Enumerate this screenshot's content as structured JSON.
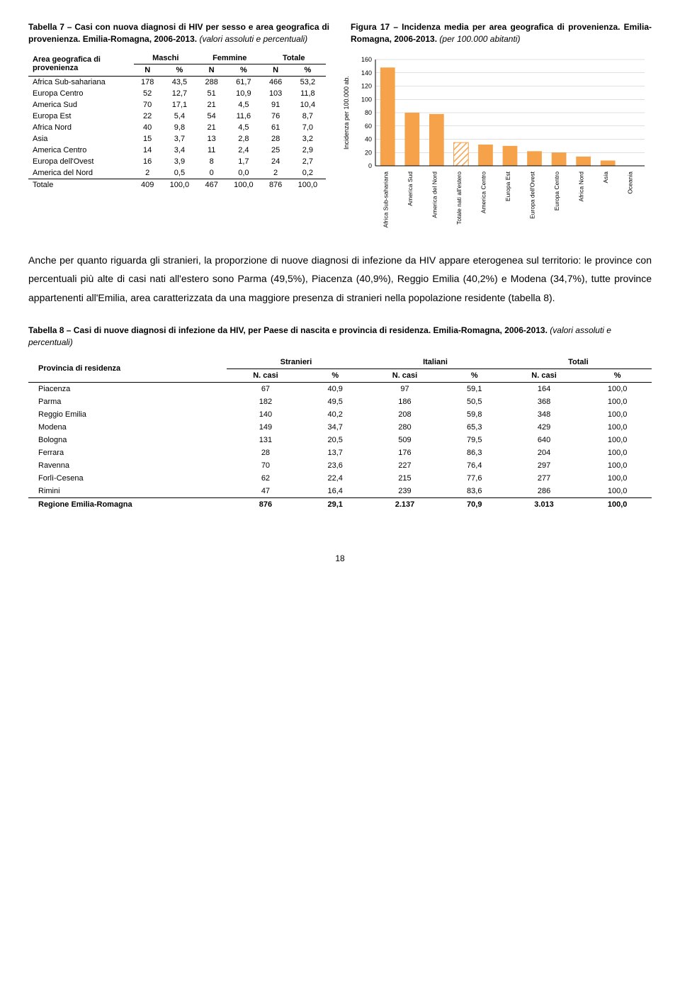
{
  "captions": {
    "t7_bold": "Tabella 7 – Casi con nuova diagnosi di HIV per sesso e area geografica di provenienza. Emilia-Romagna, 2006-2013.",
    "t7_italic": " (valori assoluti e percentuali)",
    "f17_bold": "Figura 17 – Incidenza media per area geografica di provenienza. Emilia-Romagna, 2006-2013.",
    "f17_italic": " (per 100.000 abitanti)"
  },
  "table7": {
    "corner_l1": "Area geografica di",
    "corner_l2": "provenienza",
    "group_headers": [
      "Maschi",
      "Femmine",
      "Totale"
    ],
    "sub_headers": [
      "N",
      "%",
      "N",
      "%",
      "N",
      "%"
    ],
    "rows": [
      {
        "label": "Africa Sub-sahariana",
        "v": [
          "178",
          "43,5",
          "288",
          "61,7",
          "466",
          "53,2"
        ]
      },
      {
        "label": "Europa Centro",
        "v": [
          "52",
          "12,7",
          "51",
          "10,9",
          "103",
          "11,8"
        ]
      },
      {
        "label": "America Sud",
        "v": [
          "70",
          "17,1",
          "21",
          "4,5",
          "91",
          "10,4"
        ]
      },
      {
        "label": "Europa Est",
        "v": [
          "22",
          "5,4",
          "54",
          "11,6",
          "76",
          "8,7"
        ]
      },
      {
        "label": "Africa Nord",
        "v": [
          "40",
          "9,8",
          "21",
          "4,5",
          "61",
          "7,0"
        ]
      },
      {
        "label": "Asia",
        "v": [
          "15",
          "3,7",
          "13",
          "2,8",
          "28",
          "3,2"
        ]
      },
      {
        "label": "America Centro",
        "v": [
          "14",
          "3,4",
          "11",
          "2,4",
          "25",
          "2,9"
        ]
      },
      {
        "label": "Europa dell'Ovest",
        "v": [
          "16",
          "3,9",
          "8",
          "1,7",
          "24",
          "2,7"
        ]
      },
      {
        "label": "America del Nord",
        "v": [
          "2",
          "0,5",
          "0",
          "0,0",
          "2",
          "0,2"
        ]
      }
    ],
    "total": {
      "label": "Totale",
      "v": [
        "409",
        "100,0",
        "467",
        "100,0",
        "876",
        "100,0"
      ]
    }
  },
  "chart": {
    "type": "bar",
    "ylabel": "Incidenza per 100.000 ab.",
    "ylim": [
      0,
      160
    ],
    "ytick_step": 20,
    "bar_color": "#f5a24a",
    "hatched_index": 3,
    "grid_color": "#bfbfbf",
    "axis_color": "#000000",
    "background_color": "#ffffff",
    "categories": [
      "Africa Sub-sahariana",
      "America Sud",
      "America del Nord",
      "Totale nati all'estero",
      "America Centro",
      "Europa Est",
      "Europa dell'Ovest",
      "Europa Centro",
      "Africa Nord",
      "Asia",
      "Oceania"
    ],
    "values": [
      148,
      80,
      78,
      35,
      32,
      30,
      22,
      20,
      14,
      8,
      0
    ]
  },
  "paragraph": "Anche per quanto riguarda gli stranieri, la proporzione di nuove diagnosi di infezione da HIV appare eterogenea sul territorio: le province con percentuali più alte di casi nati all'estero sono Parma (49,5%), Piacenza (40,9%), Reggio Emilia (40,2%) e Modena (34,7%), tutte province appartenenti all'Emilia, area caratterizzata da una maggiore presenza di stranieri nella popolazione residente (tabella 8).",
  "t8caption_bold": "Tabella 8 – Casi di nuove diagnosi di infezione da HIV, per Paese di nascita e provincia di residenza. Emilia-Romagna, 2006-2013.",
  "t8caption_italic": " (valori assoluti e percentuali)",
  "table8": {
    "corner": "Provincia di residenza",
    "group_headers": [
      "Stranieri",
      "Italiani",
      "Totali"
    ],
    "sub_headers": [
      "N. casi",
      "%",
      "N. casi",
      "%",
      "N. casi",
      "%"
    ],
    "rows": [
      {
        "label": "Piacenza",
        "v": [
          "67",
          "40,9",
          "97",
          "59,1",
          "164",
          "100,0"
        ]
      },
      {
        "label": "Parma",
        "v": [
          "182",
          "49,5",
          "186",
          "50,5",
          "368",
          "100,0"
        ]
      },
      {
        "label": "Reggio Emilia",
        "v": [
          "140",
          "40,2",
          "208",
          "59,8",
          "348",
          "100,0"
        ]
      },
      {
        "label": "Modena",
        "v": [
          "149",
          "34,7",
          "280",
          "65,3",
          "429",
          "100,0"
        ]
      },
      {
        "label": "Bologna",
        "v": [
          "131",
          "20,5",
          "509",
          "79,5",
          "640",
          "100,0"
        ]
      },
      {
        "label": "Ferrara",
        "v": [
          "28",
          "13,7",
          "176",
          "86,3",
          "204",
          "100,0"
        ]
      },
      {
        "label": "Ravenna",
        "v": [
          "70",
          "23,6",
          "227",
          "76,4",
          "297",
          "100,0"
        ]
      },
      {
        "label": "Forlì-Cesena",
        "v": [
          "62",
          "22,4",
          "215",
          "77,6",
          "277",
          "100,0"
        ]
      },
      {
        "label": "Rimini",
        "v": [
          "47",
          "16,4",
          "239",
          "83,6",
          "286",
          "100,0"
        ]
      }
    ],
    "total": {
      "label": "Regione Emilia-Romagna",
      "v": [
        "876",
        "29,1",
        "2.137",
        "70,9",
        "3.013",
        "100,0"
      ]
    }
  },
  "pagenum": "18"
}
